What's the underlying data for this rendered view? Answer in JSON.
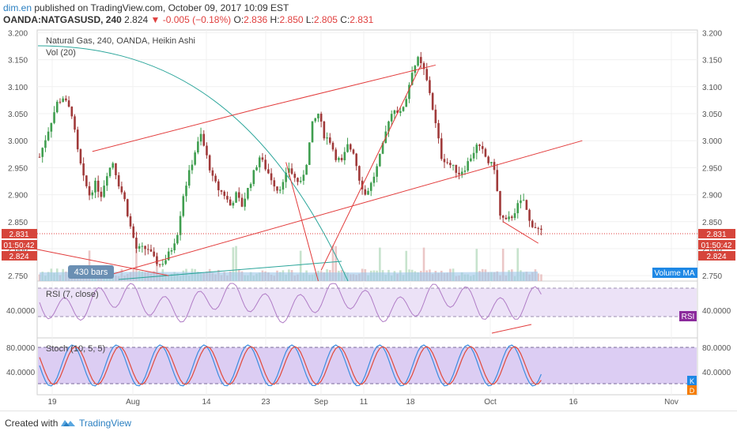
{
  "header": {
    "author": "dim.en",
    "published": "published on TradingView.com, October 09, 2017 10:09 EST",
    "symbol": "OANDA:NATGASUSD, 240",
    "last": "2.824",
    "change_arrow": "▼",
    "change": "-0.005 (−0.18%)",
    "ohlc": {
      "o_label": "O:",
      "o": "2.836",
      "h_label": "H:",
      "h": "2.850",
      "l_label": "L:",
      "l": "2.805",
      "c_label": "C:",
      "c": "2.831"
    }
  },
  "legend": {
    "main": "Natural Gas, 240, OANDA, Heikin Ashi",
    "vol": "Vol (20)",
    "rsi": "RSI (7, close)",
    "stoch": "Stoch (10, 5, 5)"
  },
  "labels": {
    "bars": "430 bars",
    "volume_ma": "Volume MA",
    "price_tag_1": "2.831",
    "price_tag_2": "01:50:42",
    "price_tag_3": "2.824",
    "rsi_tag": "RSI",
    "stoch_k": "K",
    "stoch_d": "D"
  },
  "footer": {
    "created": "Created with",
    "brand": "TradingView"
  },
  "colors": {
    "up": "#3f9e4f",
    "down": "#a03a3a",
    "trend": "#e23b3b",
    "arc": "#2aa59a",
    "rsi_band": "#e9ddf6",
    "stoch_band": "#dccdf3",
    "k_line": "#3b8de0",
    "d_line": "#e24a3a"
  },
  "chart_data": {
    "type": "candlestick",
    "price_axis": {
      "ticks": [
        "3.200",
        "3.150",
        "3.100",
        "3.050",
        "3.000",
        "2.950",
        "2.900",
        "2.850",
        "2.800",
        "2.750"
      ],
      "ylim": [
        2.74,
        3.205
      ]
    },
    "time_axis": {
      "ticks": [
        "19",
        "Aug",
        "14",
        "23",
        "Sep",
        "11",
        "18",
        "Oct",
        "16",
        "Nov"
      ]
    },
    "rsi_axis": {
      "ticks": [
        "40.0000"
      ]
    },
    "stoch_axis": {
      "ticks": [
        "80.0000",
        "40.0000"
      ]
    },
    "price_path": [
      [
        0,
        2.97
      ],
      [
        3,
        3.02
      ],
      [
        6,
        3.07
      ],
      [
        8,
        3.08
      ],
      [
        11,
        3.05
      ],
      [
        13,
        2.98
      ],
      [
        15,
        2.93
      ],
      [
        17,
        2.9
      ],
      [
        19,
        2.92
      ],
      [
        21,
        2.9
      ],
      [
        23,
        2.94
      ],
      [
        25,
        2.96
      ],
      [
        27,
        2.92
      ],
      [
        29,
        2.89
      ],
      [
        31,
        2.84
      ],
      [
        33,
        2.8
      ],
      [
        35,
        2.8
      ],
      [
        37,
        2.8
      ],
      [
        39,
        2.78
      ],
      [
        41,
        2.77
      ],
      [
        43,
        2.78
      ],
      [
        45,
        2.8
      ],
      [
        47,
        2.83
      ],
      [
        49,
        2.9
      ],
      [
        51,
        2.94
      ],
      [
        53,
        2.98
      ],
      [
        55,
        3.01
      ],
      [
        57,
        2.97
      ],
      [
        59,
        2.93
      ],
      [
        61,
        2.91
      ],
      [
        63,
        2.9
      ],
      [
        65,
        2.88
      ],
      [
        67,
        2.9
      ],
      [
        69,
        2.88
      ],
      [
        71,
        2.91
      ],
      [
        73,
        2.94
      ],
      [
        75,
        2.97
      ],
      [
        77,
        2.95
      ],
      [
        79,
        2.93
      ],
      [
        81,
        2.91
      ],
      [
        83,
        2.92
      ],
      [
        85,
        2.95
      ],
      [
        87,
        2.93
      ],
      [
        89,
        2.92
      ],
      [
        91,
        2.96
      ],
      [
        93,
        3.03
      ],
      [
        95,
        3.05
      ],
      [
        97,
        3.01
      ],
      [
        99,
        3.0
      ],
      [
        101,
        2.97
      ],
      [
        103,
        2.96
      ],
      [
        105,
        2.99
      ],
      [
        107,
        2.98
      ],
      [
        109,
        2.93
      ],
      [
        111,
        2.9
      ],
      [
        113,
        2.92
      ],
      [
        115,
        2.95
      ],
      [
        117,
        2.99
      ],
      [
        119,
        3.04
      ],
      [
        121,
        3.06
      ],
      [
        123,
        3.05
      ],
      [
        125,
        3.08
      ],
      [
        127,
        3.13
      ],
      [
        129,
        3.15
      ],
      [
        131,
        3.13
      ],
      [
        133,
        3.09
      ],
      [
        135,
        3.03
      ],
      [
        137,
        2.97
      ],
      [
        139,
        2.96
      ],
      [
        141,
        2.95
      ],
      [
        143,
        2.94
      ],
      [
        145,
        2.95
      ],
      [
        147,
        2.97
      ],
      [
        149,
        2.99
      ],
      [
        151,
        2.98
      ],
      [
        153,
        2.96
      ],
      [
        155,
        2.95
      ],
      [
        157,
        2.86
      ],
      [
        159,
        2.85
      ],
      [
        161,
        2.86
      ],
      [
        163,
        2.88
      ],
      [
        165,
        2.89
      ],
      [
        167,
        2.85
      ],
      [
        169,
        2.84
      ],
      [
        171,
        2.83
      ]
    ],
    "trend_lines": [
      {
        "from": [
          -2,
          2.8
        ],
        "to": [
          44,
          2.75
        ]
      },
      {
        "from": [
          18,
          2.98
        ],
        "to": [
          75,
          3.06
        ]
      },
      {
        "from": [
          75,
          3.06
        ],
        "to": [
          135,
          3.14
        ]
      },
      {
        "from": [
          23,
          2.75
        ],
        "to": [
          185,
          3.0
        ]
      },
      {
        "from": [
          84,
          2.96
        ],
        "to": [
          95,
          2.74
        ]
      },
      {
        "from": [
          96,
          2.76
        ],
        "to": [
          130,
          3.14
        ]
      },
      {
        "from": [
          158,
          2.85
        ],
        "to": [
          170,
          2.81
        ]
      }
    ]
  }
}
